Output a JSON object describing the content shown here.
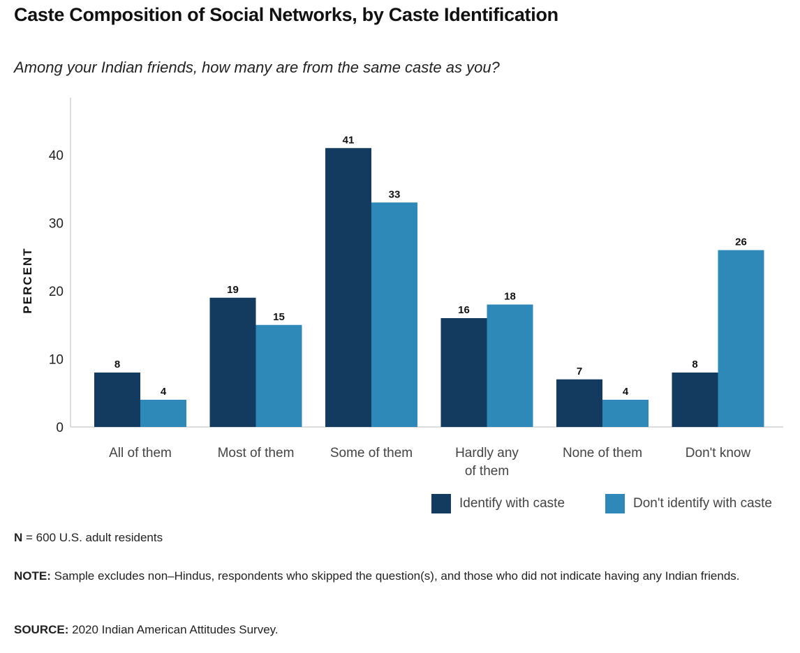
{
  "chart_data": {
    "type": "bar",
    "title": "Caste Composition of Social Networks, by Caste Identification",
    "subtitle": "Among your Indian friends, how many are from the same caste as you?",
    "ylabel": "PERCENT",
    "xlabel": "",
    "ylim": [
      0,
      48
    ],
    "yticks": [
      "0",
      "10",
      "20",
      "30",
      "40"
    ],
    "categories": [
      [
        "All of them"
      ],
      [
        "Most of them"
      ],
      [
        "Some of them"
      ],
      [
        "Hardly any",
        "of them"
      ],
      [
        "None of them"
      ],
      [
        "Don't know"
      ]
    ],
    "series": [
      {
        "name": "Identify with caste",
        "color": "#133a5f",
        "values": [
          8,
          19,
          41,
          16,
          7,
          8
        ]
      },
      {
        "name": "Don't identify with caste",
        "color": "#2e88b8",
        "values": [
          4,
          15,
          33,
          18,
          4,
          26
        ]
      }
    ],
    "legend_position": "bottom-right",
    "grid": false
  },
  "footer": {
    "n_label": "N",
    "n_text": " = 600 U.S. adult residents",
    "note_label": "NOTE:",
    "note_text": " Sample excludes non–Hindus, respondents who skipped the question(s), and those who did not indicate having any Indian friends.",
    "source_label": "SOURCE:",
    "source_text": " 2020 Indian American Attitudes Survey."
  }
}
